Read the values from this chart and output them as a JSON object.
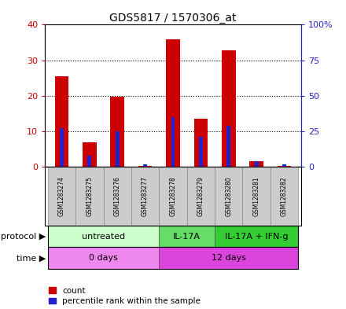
{
  "title": "GDS5817 / 1570306_at",
  "samples": [
    "GSM1283274",
    "GSM1283275",
    "GSM1283276",
    "GSM1283277",
    "GSM1283278",
    "GSM1283279",
    "GSM1283280",
    "GSM1283281",
    "GSM1283282"
  ],
  "count_values": [
    25.5,
    6.8,
    19.8,
    0.2,
    35.8,
    13.5,
    32.8,
    1.5,
    0.3
  ],
  "percentile_values": [
    27,
    8,
    25,
    2,
    35,
    21,
    29,
    4,
    2
  ],
  "ylim_left": [
    0,
    40
  ],
  "ylim_right": [
    0,
    100
  ],
  "yticks_left": [
    0,
    10,
    20,
    30,
    40
  ],
  "yticks_right": [
    0,
    25,
    50,
    75,
    100
  ],
  "ytick_labels_left": [
    "0",
    "10",
    "20",
    "30",
    "40"
  ],
  "ytick_labels_right": [
    "0",
    "25",
    "50",
    "75",
    "100%"
  ],
  "bar_color_red": "#cc0000",
  "bar_color_blue": "#2222cc",
  "protocol_groups": [
    {
      "label": "untreated",
      "start": 0,
      "end": 4,
      "color": "#ccffcc"
    },
    {
      "label": "IL-17A",
      "start": 4,
      "end": 6,
      "color": "#66dd66"
    },
    {
      "label": "IL-17A + IFN-g",
      "start": 6,
      "end": 9,
      "color": "#33cc33"
    }
  ],
  "time_groups": [
    {
      "label": "0 days",
      "start": 0,
      "end": 4,
      "color": "#ee88ee"
    },
    {
      "label": "12 days",
      "start": 4,
      "end": 9,
      "color": "#dd44dd"
    }
  ],
  "protocol_label": "protocol",
  "time_label": "time",
  "sample_bg_color": "#cccccc",
  "grid_color": "#000000"
}
